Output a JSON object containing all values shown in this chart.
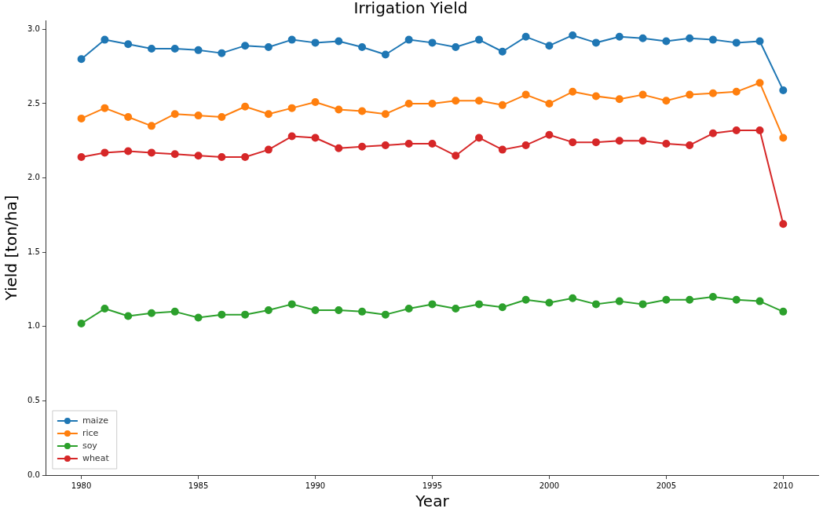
{
  "chart_data": {
    "type": "line",
    "title": "Irrigation Yield",
    "xlabel": "Year",
    "ylabel": "Yield [ton/ha]",
    "x": [
      1980,
      1981,
      1982,
      1983,
      1984,
      1985,
      1986,
      1987,
      1988,
      1989,
      1990,
      1991,
      1992,
      1993,
      1994,
      1995,
      1996,
      1997,
      1998,
      1999,
      2000,
      2001,
      2002,
      2003,
      2004,
      2005,
      2006,
      2007,
      2008,
      2009,
      2010
    ],
    "series": [
      {
        "name": "maize",
        "color": "#1f77b4",
        "values": [
          2.8,
          2.93,
          2.9,
          2.87,
          2.87,
          2.86,
          2.84,
          2.89,
          2.88,
          2.93,
          2.91,
          2.92,
          2.88,
          2.83,
          2.93,
          2.91,
          2.88,
          2.93,
          2.85,
          2.95,
          2.89,
          2.96,
          2.91,
          2.95,
          2.94,
          2.92,
          2.94,
          2.93,
          2.91,
          2.92,
          2.59
        ]
      },
      {
        "name": "rice",
        "color": "#ff7f0e",
        "values": [
          2.4,
          2.47,
          2.41,
          2.35,
          2.43,
          2.42,
          2.41,
          2.48,
          2.43,
          2.47,
          2.51,
          2.46,
          2.45,
          2.43,
          2.5,
          2.5,
          2.52,
          2.52,
          2.49,
          2.56,
          2.5,
          2.58,
          2.55,
          2.53,
          2.56,
          2.52,
          2.56,
          2.57,
          2.58,
          2.64,
          2.27
        ]
      },
      {
        "name": "soy",
        "color": "#2ca02c",
        "values": [
          1.02,
          1.12,
          1.07,
          1.09,
          1.1,
          1.06,
          1.08,
          1.08,
          1.11,
          1.15,
          1.11,
          1.11,
          1.1,
          1.08,
          1.12,
          1.15,
          1.12,
          1.15,
          1.13,
          1.18,
          1.16,
          1.19,
          1.15,
          1.17,
          1.15,
          1.18,
          1.18,
          1.2,
          1.18,
          1.17,
          1.1
        ]
      },
      {
        "name": "wheat",
        "color": "#d62728",
        "values": [
          2.14,
          2.17,
          2.18,
          2.17,
          2.16,
          2.15,
          2.14,
          2.14,
          2.19,
          2.28,
          2.27,
          2.2,
          2.21,
          2.22,
          2.23,
          2.23,
          2.15,
          2.27,
          2.19,
          2.22,
          2.29,
          2.24,
          2.24,
          2.25,
          2.25,
          2.23,
          2.22,
          2.3,
          2.32,
          2.32,
          1.69
        ]
      }
    ],
    "xlim": [
      1978.5,
      2011.5
    ],
    "xticks": [
      1980,
      1985,
      1990,
      1995,
      2000,
      2005,
      2010
    ],
    "ylim": [
      0,
      3.06
    ],
    "yticks": [
      {
        "value": 0,
        "label": "0.0"
      },
      {
        "value": 0.5,
        "label": "0.5"
      },
      {
        "value": 1,
        "label": "1.0"
      },
      {
        "value": 1.5,
        "label": "1.5"
      },
      {
        "value": 2,
        "label": "2.0"
      },
      {
        "value": 2.5,
        "label": "2.5"
      },
      {
        "value": 3,
        "label": "3.0"
      }
    ],
    "grid": false,
    "legend": "bottom left",
    "marker": "circle",
    "line_style": "solid"
  }
}
